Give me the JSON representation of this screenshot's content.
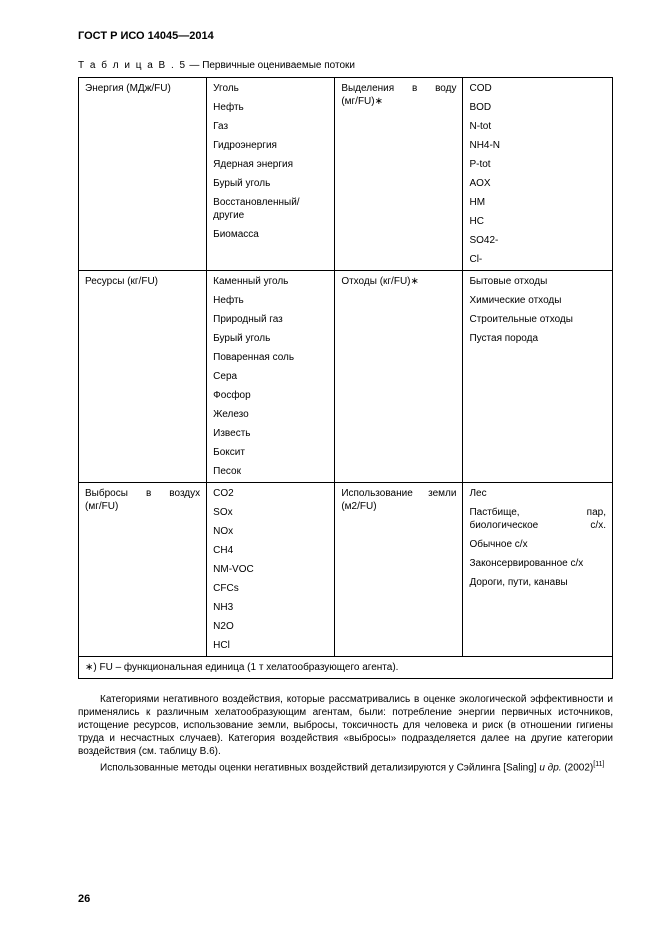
{
  "doc_header": "ГОСТ Р ИСО 14045—2014",
  "table_caption_prefix": "Т а б л и ц а   В . 5",
  "table_caption_dash": " — ",
  "table_caption_title": "Первичные оцениваемые потоки",
  "section1": {
    "row_a": "Энергия (МДж/FU)",
    "items_b": [
      "Уголь",
      "Нефть",
      "Газ",
      "Гидроэнергия",
      "Ядерная энергия",
      "Бурый уголь",
      "Восстановленный/ другие",
      "Биомасса"
    ],
    "row_c": "Выделения в воду (мг/FU)∗",
    "items_d": [
      "COD",
      "BOD",
      "N-tot",
      "NH4-N",
      "P-tot",
      "AOX",
      "HM",
      "HC",
      "SO42-",
      "Cl-"
    ]
  },
  "section2": {
    "row_a": "Ресурсы (кг/FU)",
    "items_b": [
      "Каменный уголь",
      "Нефть",
      "Природный газ",
      "Бурый уголь",
      "Поваренная соль",
      "Сера",
      "Фосфор",
      "Железо",
      "Известь",
      "Боксит",
      "Песок"
    ],
    "row_c": "Отходы (кг/FU)∗",
    "items_d": [
      "Бытовые отходы",
      "Химические отходы",
      "Строительные отходы",
      "Пустая порода"
    ]
  },
  "section3": {
    "row_a": "Выбросы в воздух (мг/FU)",
    "items_b": [
      "CO2",
      "SOx",
      "NOx",
      "CH4",
      "NM-VOC",
      "CFCs",
      "NH3",
      "N2O",
      "HCl"
    ],
    "row_c": "Использование земли (м2/FU)",
    "items_d_0": "Лес",
    "items_d_1": "Пастбище, пар, биологическое с/х.",
    "items_d_2": "Обычное с/х",
    "items_d_3": "Законсервированное с/х",
    "items_d_4": "Дороги, пути, канавы"
  },
  "footnote": "∗) FU – функциональная единица (1 т хелатообразующего агента).",
  "para1": "Категориями негативного воздействия, которые рассматривались в оценке экологической эффективности и применялись к различным хелатообразующим агентам, были: потребление энергии первичных источников, истощение ресурсов, использование земли, выбросы, токсичность для человека и риск (в отношении гигиены труда и несчастных случаев). Категория воздействия «выбросы» подразделяется далее на другие категории воздействия (см. таблицу В.6).",
  "para2_a": "Использованные методы оценки негативных воздействий детализируются у Сэйлинга [Saling] ",
  "para2_b": "и др.",
  "para2_c": " (2002)",
  "para2_sup": "[11]",
  "page_number": "26"
}
